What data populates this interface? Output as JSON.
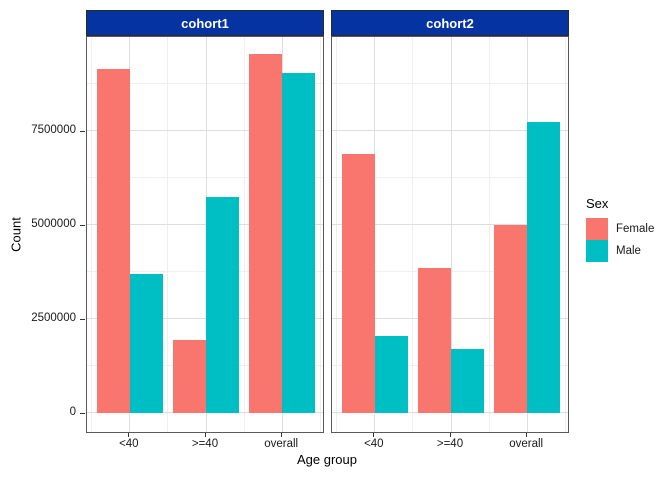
{
  "chart_data": {
    "type": "bar",
    "layout": "dodged bars, faceted left-right by cohort, legend right",
    "categories": [
      "<40",
      ">=40",
      "overall"
    ],
    "facets": [
      {
        "label": "cohort1",
        "series": [
          {
            "name": "Female",
            "values": [
              9150000,
              1950000,
              9550000
            ]
          },
          {
            "name": "Male",
            "values": [
              3700000,
              5750000,
              9050000
            ]
          }
        ]
      },
      {
        "label": "cohort2",
        "series": [
          {
            "name": "Female",
            "values": [
              6900000,
              3850000,
              5000000
            ]
          },
          {
            "name": "Male",
            "values": [
              2050000,
              1700000,
              7750000
            ]
          }
        ]
      }
    ],
    "xlabel": "Age group",
    "ylabel": "Count",
    "ylim": [
      0,
      10000000
    ],
    "yticks": [
      {
        "value": 0,
        "label": "0"
      },
      {
        "value": 2500000,
        "label": "2500000"
      },
      {
        "value": 5000000,
        "label": "5000000"
      },
      {
        "value": 7500000,
        "label": "7500000"
      }
    ],
    "minor_yticks": [
      1250000,
      3750000,
      6250000,
      8750000
    ],
    "grid": "major and minor gridlines on, white panel background",
    "legend": {
      "title": "Sex",
      "position": "right",
      "entries": [
        {
          "label": "Female",
          "color": "#F8766D"
        },
        {
          "label": "Male",
          "color": "#00BFC4"
        }
      ]
    },
    "colors": {
      "Female": "#F8766D",
      "Male": "#00BFC4"
    },
    "style": {
      "strip_fill": "#0533A1",
      "strip_text_color": "#FFFFFF",
      "strip_border": "#2B2B2B",
      "panel_border": "#595959",
      "grid_major": "#DEDEDE",
      "grid_minor": "#EFEFEF",
      "tick_color": "#333333",
      "text_color": "#1A1A1A"
    }
  }
}
